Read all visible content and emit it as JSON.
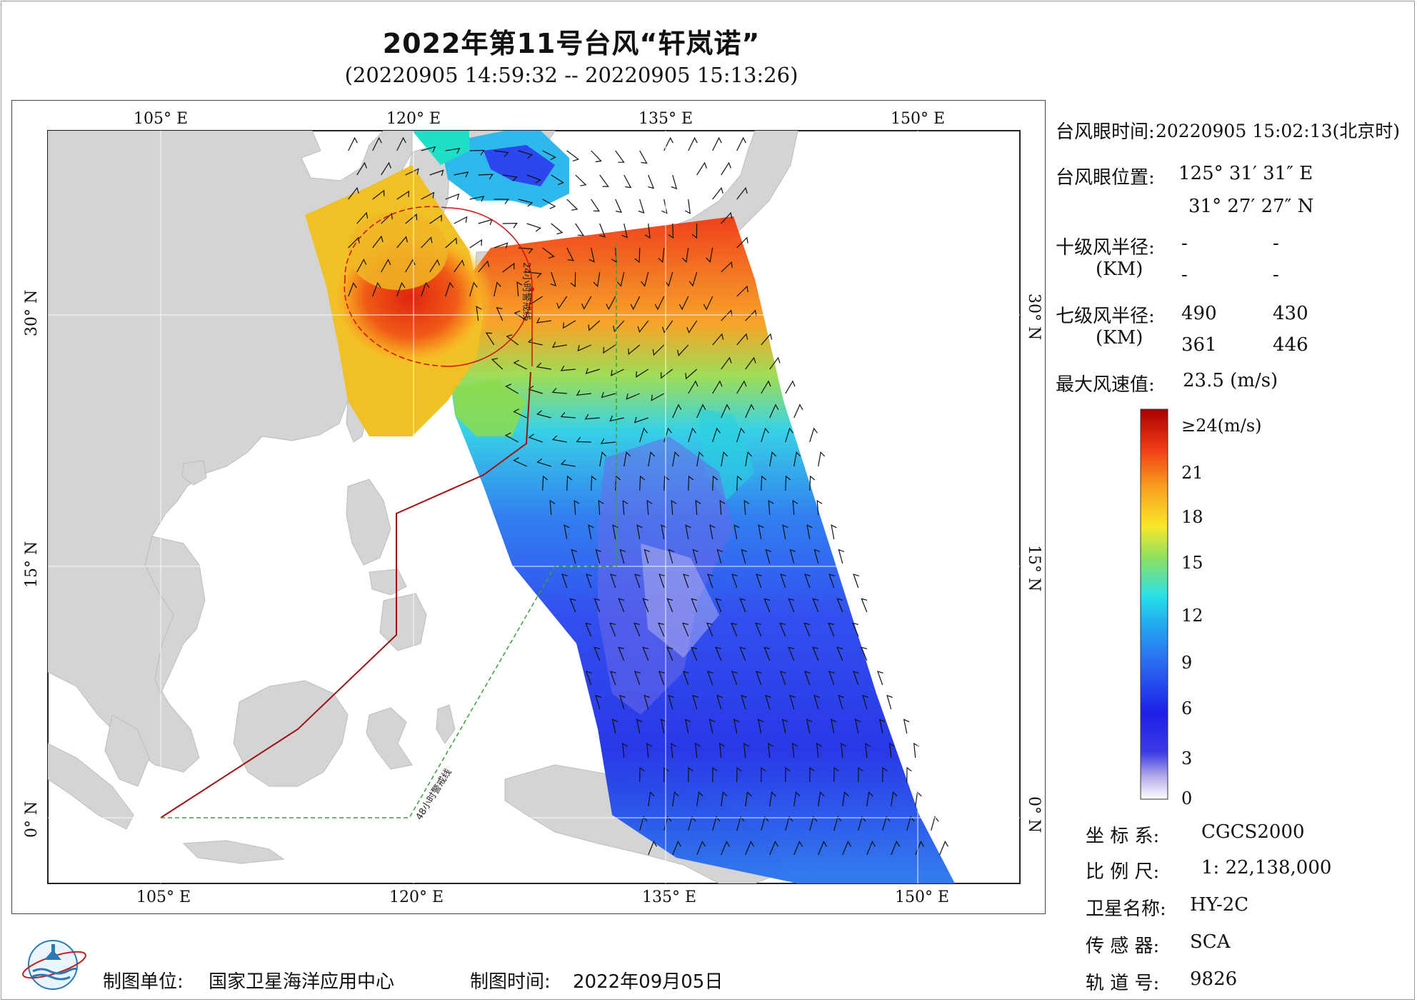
{
  "title": "2022年第11号台风“轩岚诺”",
  "subtitle": "(20220905 14:59:32 -- 20220905 15:13:26)",
  "map": {
    "lon_labels_top": [
      "105° E",
      "120° E",
      "135° E",
      "150° E"
    ],
    "lon_labels_bottom": [
      "105° E",
      "120° E",
      "135° E",
      "150° E"
    ],
    "lat_labels_left": [
      "30° N",
      "15° N",
      "0° N"
    ],
    "lat_labels_right": [
      "30° N",
      "15° N",
      "0° N"
    ],
    "line_24h_label": "24小时警戒线",
    "line_48h_label": "48小时警戒线",
    "colors": {
      "land": "#d4d4d4",
      "ocean": "#ffffff",
      "warning24": "#a11010",
      "warning48": "#3aa03a",
      "radius": "#d01010"
    }
  },
  "info": {
    "eye_time_label": "台风眼时间:",
    "eye_time_value": "20220905 15:02:13(北京时)",
    "eye_pos_label": "台风眼位置:",
    "eye_lon": "125° 31′ 31″ E",
    "eye_lat": "31° 27′ 27″ N",
    "r10_label": "十级风半径:",
    "r10_unit": "(KM)",
    "r10_values": [
      "-",
      "-",
      "-",
      "-"
    ],
    "r7_label": "七级风半径:",
    "r7_unit": "(KM)",
    "r7_values": [
      "490",
      "430",
      "361",
      "446"
    ],
    "max_wind_label": "最大风速值:",
    "max_wind_value": "23.5 (m/s)"
  },
  "colorbar": {
    "labels": [
      "≥24(m/s)",
      "21",
      "18",
      "15",
      "12",
      "9",
      "6",
      "3",
      "0"
    ],
    "stops": [
      "#ffffff",
      "#b0a8e8",
      "#4040e0",
      "#1e1ee8",
      "#2a6cf0",
      "#22aaf0",
      "#28e0e8",
      "#90e060",
      "#f8e82a",
      "#f8a020",
      "#f03a14",
      "#a80000"
    ]
  },
  "meta": {
    "crs_label": "坐 标 系:",
    "crs_value": "CGCS2000",
    "scale_label": "比 例 尺:",
    "scale_value": "1: 22,138,000",
    "sat_label": "卫星名称:",
    "sat_value": "HY-2C",
    "sensor_label": "传 感 器:",
    "sensor_value": "SCA",
    "orbit_label": "轨 道 号:",
    "orbit_value": "9826"
  },
  "footer": {
    "org_label": "制图单位:",
    "org_value": "国家卫星海洋应用中心",
    "date_label": "制图时间:",
    "date_value": "2022年09月05日"
  }
}
